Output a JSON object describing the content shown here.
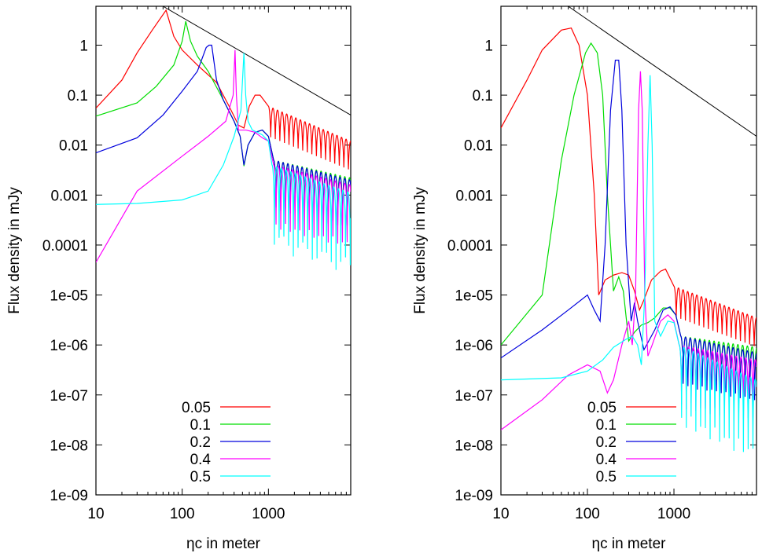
{
  "colors": {
    "0.05": "#ff0000",
    "0.1": "#00dd00",
    "0.2": "#0000dd",
    "0.4": "#ff00ff",
    "0.5": "#00ffff",
    "envelope": "#000000"
  },
  "chart_data": [
    {
      "type": "line",
      "title": "",
      "xlabel": "ηc in meter",
      "ylabel": "Flux density in mJy",
      "xscale": "log",
      "yscale": "log",
      "xlim": [
        10,
        9000
      ],
      "ylim": [
        1e-09,
        6
      ],
      "xticks": [
        {
          "v": 10,
          "label": "10"
        },
        {
          "v": 100,
          "label": "100"
        },
        {
          "v": 1000,
          "label": "1000"
        }
      ],
      "yticks": [
        {
          "v": 1,
          "label": "1"
        },
        {
          "v": 0.1,
          "label": "0.1"
        },
        {
          "v": 0.01,
          "label": "0.01"
        },
        {
          "v": 0.001,
          "label": "0.001"
        },
        {
          "v": 0.0001,
          "label": "0.0001"
        },
        {
          "v": 1e-05,
          "label": "1e-05"
        },
        {
          "v": 1e-06,
          "label": "1e-06"
        },
        {
          "v": 1e-07,
          "label": "1e-07"
        },
        {
          "v": 1e-08,
          "label": "1e-08"
        },
        {
          "v": 1e-09,
          "label": "1e-09"
        }
      ],
      "grid": false,
      "legend_position": "bottom-center",
      "envelope": {
        "x": [
          60,
          9000
        ],
        "y": [
          6,
          0.04
        ]
      },
      "series": [
        {
          "name": "0.05",
          "color": "#ff0000",
          "points": [
            [
              10,
              0.055
            ],
            [
              20,
              0.2
            ],
            [
              30,
              0.7
            ],
            [
              45,
              2
            ],
            [
              65,
              5
            ],
            [
              80,
              1.5
            ],
            [
              100,
              0.8
            ],
            [
              150,
              0.4
            ],
            [
              250,
              0.18
            ],
            [
              350,
              0.06
            ],
            [
              450,
              0.025
            ],
            [
              520,
              0.022
            ],
            [
              600,
              0.06
            ],
            [
              700,
              0.1
            ],
            [
              800,
              0.1
            ],
            [
              1000,
              0.06
            ]
          ],
          "osc": {
            "x0": 1000,
            "x1": 9000,
            "env0": 0.06,
            "env1": 0.012,
            "period": 0.053,
            "depth": 0.75
          }
        },
        {
          "name": "0.1",
          "color": "#00dd00",
          "points": [
            [
              10,
              0.038
            ],
            [
              30,
              0.07
            ],
            [
              50,
              0.15
            ],
            [
              80,
              0.4
            ],
            [
              100,
              1.2
            ],
            [
              110,
              3
            ],
            [
              125,
              1.2
            ],
            [
              150,
              0.6
            ],
            [
              200,
              0.3
            ],
            [
              300,
              0.08
            ],
            [
              400,
              0.03
            ],
            [
              470,
              0.015
            ],
            [
              520,
              0.0038
            ],
            [
              580,
              0.01
            ],
            [
              700,
              0.018
            ],
            [
              850,
              0.02
            ],
            [
              1000,
              0.015
            ],
            [
              1150,
              0.005
            ]
          ],
          "osc": {
            "x0": 1150,
            "x1": 9000,
            "env0": 0.005,
            "env1": 0.0022,
            "period": 0.055,
            "depth": 0.85
          }
        },
        {
          "name": "0.2",
          "color": "#0000dd",
          "points": [
            [
              10,
              0.007
            ],
            [
              30,
              0.014
            ],
            [
              60,
              0.04
            ],
            [
              100,
              0.12
            ],
            [
              150,
              0.3
            ],
            [
              190,
              0.9
            ],
            [
              205,
              1
            ],
            [
              220,
              1
            ],
            [
              250,
              0.2
            ],
            [
              300,
              0.08
            ],
            [
              400,
              0.03
            ],
            [
              470,
              0.015
            ],
            [
              520,
              0.004
            ],
            [
              580,
              0.01
            ],
            [
              700,
              0.018
            ],
            [
              850,
              0.02
            ],
            [
              1000,
              0.015
            ],
            [
              1150,
              0.005
            ]
          ],
          "osc": {
            "x0": 1150,
            "x1": 9000,
            "env0": 0.005,
            "env1": 0.002,
            "period": 0.055,
            "depth": 0.9
          }
        },
        {
          "name": "0.4",
          "color": "#ff00ff",
          "points": [
            [
              10,
              4.5e-05
            ],
            [
              30,
              0.0012
            ],
            [
              100,
              0.006
            ],
            [
              200,
              0.015
            ],
            [
              320,
              0.03
            ],
            [
              390,
              0.1
            ],
            [
              410,
              0.8
            ],
            [
              425,
              0.1
            ],
            [
              450,
              0.02
            ],
            [
              550,
              0.02
            ],
            [
              700,
              0.018
            ],
            [
              850,
              0.014
            ],
            [
              1000,
              0.012
            ],
            [
              1150,
              0.004
            ]
          ],
          "osc": {
            "x0": 1150,
            "x1": 9000,
            "env0": 0.004,
            "env1": 0.0016,
            "period": 0.055,
            "depth": 0.95
          }
        },
        {
          "name": "0.5",
          "color": "#00ffff",
          "points": [
            [
              10,
              0.00065
            ],
            [
              30,
              0.00068
            ],
            [
              100,
              0.0008
            ],
            [
              200,
              0.0012
            ],
            [
              300,
              0.004
            ],
            [
              400,
              0.015
            ],
            [
              480,
              0.05
            ],
            [
              520,
              0.7
            ],
            [
              545,
              0.1
            ],
            [
              580,
              0.03
            ],
            [
              650,
              0.02
            ],
            [
              750,
              0.018
            ],
            [
              850,
              0.016
            ],
            [
              1000,
              0.012
            ],
            [
              1100,
              0.004
            ]
          ],
          "osc": {
            "x0": 1100,
            "x1": 9000,
            "env0": 0.004,
            "env1": 0.0011,
            "period": 0.055,
            "depth": 0.98
          }
        }
      ]
    },
    {
      "type": "line",
      "title": "",
      "xlabel": "ηc in meter",
      "ylabel": "Flux density in mJy",
      "xscale": "log",
      "yscale": "log",
      "xlim": [
        10,
        9000
      ],
      "ylim": [
        1e-09,
        6
      ],
      "xticks": [
        {
          "v": 10,
          "label": "10"
        },
        {
          "v": 100,
          "label": "100"
        },
        {
          "v": 1000,
          "label": "1000"
        }
      ],
      "yticks": [
        {
          "v": 1,
          "label": "1"
        },
        {
          "v": 0.1,
          "label": "0.1"
        },
        {
          "v": 0.01,
          "label": "0.01"
        },
        {
          "v": 0.001,
          "label": "0.001"
        },
        {
          "v": 0.0001,
          "label": "0.0001"
        },
        {
          "v": 1e-05,
          "label": "1e-05"
        },
        {
          "v": 1e-06,
          "label": "1e-06"
        },
        {
          "v": 1e-07,
          "label": "1e-07"
        },
        {
          "v": 1e-08,
          "label": "1e-08"
        },
        {
          "v": 1e-09,
          "label": "1e-09"
        }
      ],
      "grid": false,
      "legend_position": "bottom-center",
      "envelope": {
        "x": [
          60,
          9000
        ],
        "y": [
          6,
          0.015
        ]
      },
      "series": [
        {
          "name": "0.05",
          "color": "#ff0000",
          "points": [
            [
              10,
              0.022
            ],
            [
              20,
              0.2
            ],
            [
              30,
              0.8
            ],
            [
              50,
              2
            ],
            [
              65,
              2.2
            ],
            [
              80,
              1
            ],
            [
              100,
              0.1
            ],
            [
              120,
              0.001
            ],
            [
              135,
              1e-05
            ],
            [
              160,
              2e-05
            ],
            [
              200,
              2.5e-05
            ],
            [
              250,
              2.8e-05
            ],
            [
              300,
              2.5e-05
            ],
            [
              350,
              1.2e-05
            ],
            [
              400,
              5e-06
            ],
            [
              450,
              8e-06
            ],
            [
              550,
              2e-05
            ],
            [
              700,
              3e-05
            ],
            [
              800,
              3.3e-05
            ],
            [
              1000,
              1.5e-05
            ]
          ],
          "osc": {
            "x0": 1000,
            "x1": 9000,
            "env0": 1.5e-05,
            "env1": 3.5e-06,
            "period": 0.053,
            "depth": 0.75
          }
        },
        {
          "name": "0.1",
          "color": "#00dd00",
          "points": [
            [
              10,
              1e-06
            ],
            [
              30,
              1e-05
            ],
            [
              50,
              0.005
            ],
            [
              70,
              0.1
            ],
            [
              95,
              0.7
            ],
            [
              110,
              1.1
            ],
            [
              130,
              0.7
            ],
            [
              150,
              0.1
            ],
            [
              170,
              0.001
            ],
            [
              200,
              1.2e-05
            ],
            [
              230,
              2.3e-05
            ],
            [
              260,
              1.2e-05
            ],
            [
              300,
              1.2e-06
            ],
            [
              350,
              1.8e-06
            ],
            [
              420,
              2.5e-06
            ],
            [
              500,
              2.8e-06
            ],
            [
              600,
              3.5e-06
            ],
            [
              750,
              5.5e-06
            ],
            [
              900,
              5.5e-06
            ],
            [
              1050,
              4e-06
            ],
            [
              1200,
              1.5e-06
            ]
          ],
          "osc": {
            "x0": 1200,
            "x1": 9000,
            "env0": 1.5e-06,
            "env1": 9e-07,
            "period": 0.055,
            "depth": 0.85
          }
        },
        {
          "name": "0.2",
          "color": "#0000dd",
          "points": [
            [
              10,
              5.5e-07
            ],
            [
              30,
              2e-06
            ],
            [
              60,
              5e-06
            ],
            [
              100,
              1e-05
            ],
            [
              120,
              5e-06
            ],
            [
              140,
              3e-06
            ],
            [
              160,
              0.0001
            ],
            [
              185,
              0.05
            ],
            [
              210,
              0.5
            ],
            [
              230,
              0.5
            ],
            [
              250,
              0.05
            ],
            [
              280,
              0.0001
            ],
            [
              320,
              3e-06
            ],
            [
              350,
              7e-06
            ],
            [
              380,
              3e-06
            ],
            [
              450,
              8e-07
            ],
            [
              600,
              2e-06
            ],
            [
              750,
              5e-06
            ],
            [
              900,
              5.8e-06
            ],
            [
              1050,
              4e-06
            ],
            [
              1200,
              1.5e-06
            ]
          ],
          "osc": {
            "x0": 1200,
            "x1": 9000,
            "env0": 1.5e-06,
            "env1": 7e-07,
            "period": 0.055,
            "depth": 0.9
          }
        },
        {
          "name": "0.4",
          "color": "#ff00ff",
          "points": [
            [
              10,
              2e-08
            ],
            [
              30,
              8e-08
            ],
            [
              60,
              2.5e-07
            ],
            [
              100,
              4e-07
            ],
            [
              140,
              3e-07
            ],
            [
              170,
              1.1e-07
            ],
            [
              200,
              2e-07
            ],
            [
              250,
              1e-06
            ],
            [
              300,
              3e-06
            ],
            [
              330,
              1e-06
            ],
            [
              360,
              1e-05
            ],
            [
              390,
              0.05
            ],
            [
              410,
              0.3
            ],
            [
              430,
              0.05
            ],
            [
              460,
              1e-05
            ],
            [
              500,
              6e-07
            ],
            [
              560,
              1e-06
            ],
            [
              700,
              3e-06
            ],
            [
              850,
              4e-06
            ],
            [
              1000,
              3e-06
            ],
            [
              1150,
              1e-06
            ]
          ],
          "osc": {
            "x0": 1150,
            "x1": 9000,
            "env0": 1e-06,
            "env1": 5e-07,
            "period": 0.055,
            "depth": 0.95
          }
        },
        {
          "name": "0.5",
          "color": "#00ffff",
          "points": [
            [
              10,
              2e-07
            ],
            [
              50,
              2.2e-07
            ],
            [
              100,
              3e-07
            ],
            [
              150,
              5e-07
            ],
            [
              200,
              9e-07
            ],
            [
              280,
              1.3e-06
            ],
            [
              330,
              1.5e-06
            ],
            [
              380,
              1e-06
            ],
            [
              420,
              4e-07
            ],
            [
              460,
              1e-05
            ],
            [
              500,
              0.01
            ],
            [
              530,
              0.25
            ],
            [
              560,
              0.01
            ],
            [
              600,
              3e-06
            ],
            [
              700,
              1.5e-06
            ],
            [
              850,
              3e-06
            ],
            [
              1000,
              2.8e-06
            ],
            [
              1150,
              1e-06
            ]
          ],
          "osc": {
            "x0": 1150,
            "x1": 9000,
            "env0": 1e-06,
            "env1": 2e-07,
            "period": 0.055,
            "depth": 0.98
          }
        }
      ]
    }
  ]
}
